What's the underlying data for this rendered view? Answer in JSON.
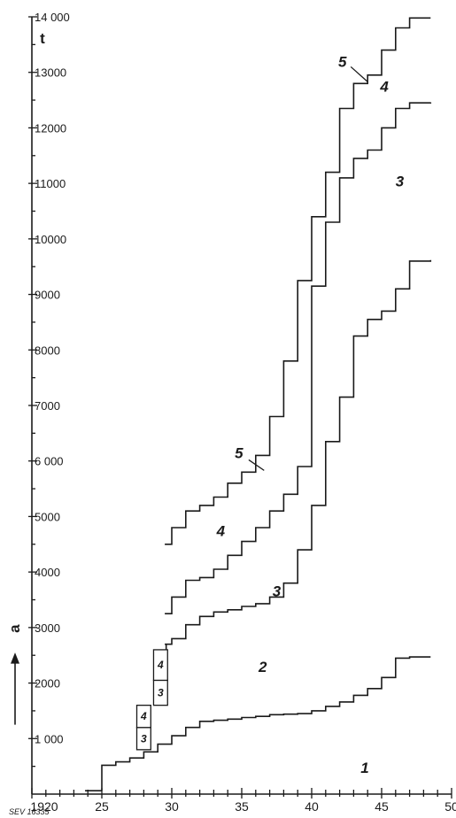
{
  "chart_data": {
    "type": "line",
    "step": "post",
    "xlabel": "",
    "ylabel": "t",
    "y_arrow_label": "a",
    "xlim": [
      1920,
      1950
    ],
    "ylim": [
      0,
      14000
    ],
    "x_ticks": [
      1920,
      1925,
      1930,
      1935,
      1940,
      1945,
      1950
    ],
    "x_tick_labels": [
      "1920",
      "25",
      "30",
      "35",
      "40",
      "45",
      "50"
    ],
    "y_ticks": [
      1000,
      2000,
      3000,
      4000,
      5000,
      6000,
      7000,
      8000,
      9000,
      10000,
      11000,
      12000,
      13000,
      14000
    ],
    "y_tick_labels": [
      "1 000",
      "2000",
      "3000",
      "4000",
      "5000",
      "6 000",
      "7000",
      "8000",
      "9000",
      "10000",
      "11000",
      "12000",
      "13000",
      "14 000"
    ],
    "reference_code": "SEV 16335",
    "series": [
      {
        "x": [
          1925,
          1926,
          1927,
          1928,
          1929,
          1930,
          1931,
          1932,
          1933,
          1934,
          1935,
          1936,
          1937,
          1938,
          1939,
          1940,
          1941,
          1942,
          1943,
          1944,
          1945,
          1946,
          1947,
          1948.5
        ],
        "values": [
          520,
          580,
          650,
          760,
          900,
          1050,
          1200,
          1310,
          1330,
          1350,
          1380,
          1400,
          1430,
          1440,
          1450,
          1500,
          1580,
          1660,
          1780,
          1900,
          2100,
          2450,
          2470,
          2470
        ]
      },
      {
        "x": [
          1929.5,
          1930,
          1931,
          1932,
          1933,
          1934,
          1935,
          1936,
          1937,
          1938,
          1939,
          1940,
          1941,
          1942,
          1943,
          1944,
          1945,
          1946,
          1947,
          1948.5
        ],
        "values": [
          2700,
          2800,
          3050,
          3200,
          3280,
          3320,
          3380,
          3430,
          3550,
          3800,
          4400,
          5200,
          6350,
          7150,
          8250,
          8550,
          8700,
          9100,
          9600,
          9620
        ]
      },
      {
        "x": [
          1929.5,
          1930,
          1931,
          1932,
          1933,
          1934,
          1935,
          1936,
          1937,
          1938,
          1939,
          1940,
          1941,
          1942,
          1943,
          1944,
          1945,
          1946,
          1947,
          1948.5
        ],
        "values": [
          3250,
          3550,
          3850,
          3900,
          4050,
          4300,
          4550,
          4800,
          5100,
          5400,
          5900,
          9150,
          10300,
          11100,
          11450,
          11600,
          12000,
          12350,
          12450,
          12460
        ]
      },
      {
        "x": [
          1929.5,
          1930,
          1931,
          1932,
          1933,
          1934,
          1935,
          1936,
          1937,
          1938,
          1939,
          1940,
          1941,
          1942,
          1943,
          1944,
          1945,
          1946,
          1947,
          1948.5
        ],
        "values": [
          4500,
          4800,
          5100,
          5200,
          5350,
          5600,
          5800,
          6100,
          6800,
          7800,
          9250,
          10400,
          11200,
          12350,
          12800,
          12950,
          13400,
          13800,
          13980,
          13980
        ]
      }
    ],
    "early_boxes": [
      {
        "x": [
          1927.5,
          1928.5
        ],
        "y": [
          800,
          1200
        ],
        "label": "3"
      },
      {
        "x": [
          1927.5,
          1928.5
        ],
        "y": [
          1200,
          1600
        ],
        "label": "4"
      },
      {
        "x": [
          1928.7,
          1929.7
        ],
        "y": [
          1600,
          2050
        ],
        "label": "3"
      },
      {
        "x": [
          1928.7,
          1929.7
        ],
        "y": [
          2050,
          2600
        ],
        "label": "4"
      }
    ],
    "region_labels": [
      {
        "text": "1",
        "x": 1943.8,
        "y": 380
      },
      {
        "text": "2",
        "x": 1936.5,
        "y": 2200
      },
      {
        "text": "3",
        "x": 1937.5,
        "y": 3560
      },
      {
        "text": "3",
        "x": 1946.3,
        "y": 10950
      },
      {
        "text": "4",
        "x": 1933.5,
        "y": 4650
      },
      {
        "text": "4",
        "x": 1945.2,
        "y": 12650
      },
      {
        "text": "5",
        "x": 1934.8,
        "y": 6050
      },
      {
        "text": "5",
        "x": 1942.2,
        "y": 13100
      }
    ],
    "pointers": [
      {
        "label": "5",
        "from": [
          1935.5,
          6020
        ],
        "to": [
          1936.6,
          5830
        ]
      },
      {
        "label": "5",
        "from": [
          1942.8,
          13100
        ],
        "to": [
          1944,
          12830
        ]
      }
    ]
  }
}
